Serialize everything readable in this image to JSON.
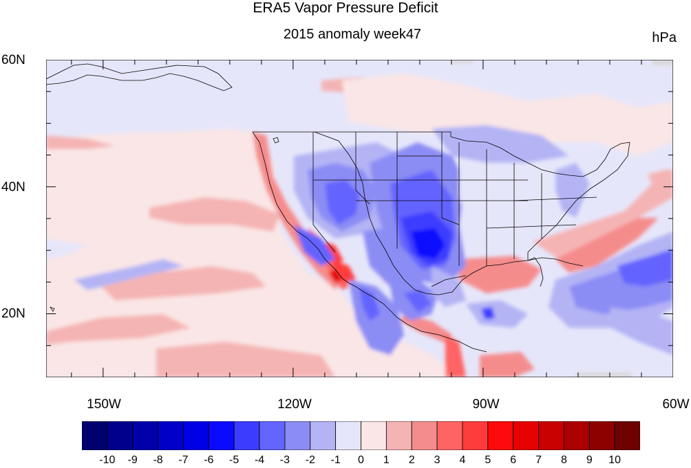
{
  "title": "ERA5 Vapor Pressure Deficit",
  "subtitle": "2015 anomaly week47",
  "units": "hPa",
  "y_ticks": [
    {
      "label": "60N",
      "lat": 60
    },
    {
      "label": "40N",
      "lat": 40
    },
    {
      "label": "20N",
      "lat": 20
    }
  ],
  "x_ticks": [
    {
      "label": "150W",
      "lon": -150
    },
    {
      "label": "120W",
      "lon": -120
    },
    {
      "label": "90W",
      "lon": -90
    },
    {
      "label": "60W",
      "lon": -60
    }
  ],
  "extent": {
    "lon": [
      -159,
      -60
    ],
    "lat": [
      10,
      60
    ]
  },
  "colorbar": {
    "labels": [
      "-10",
      "-9",
      "-8",
      "-7",
      "-6",
      "-5",
      "-4",
      "-3",
      "-2",
      "-1",
      "0",
      "1",
      "2",
      "3",
      "4",
      "5",
      "6",
      "7",
      "8",
      "9",
      "10"
    ],
    "colors": [
      "#00006e",
      "#00008c",
      "#0000aa",
      "#0000c8",
      "#0000e6",
      "#0a0aff",
      "#3c3cff",
      "#6464ff",
      "#8c8cf5",
      "#b4b4f5",
      "#e6e6fa",
      "#fae6e6",
      "#f5b4b4",
      "#f58c8c",
      "#ff6464",
      "#ff3c3c",
      "#ff0a0a",
      "#e60000",
      "#c80000",
      "#aa0000",
      "#8c0000",
      "#6e0000"
    ]
  }
}
